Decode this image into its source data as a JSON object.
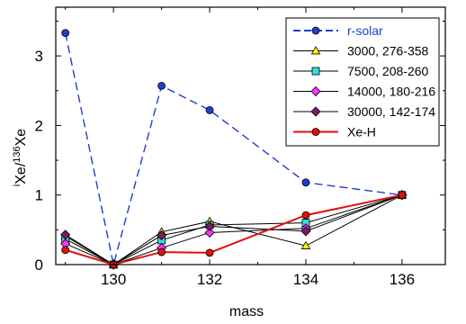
{
  "chart_data": {
    "type": "line",
    "xlabel": "mass",
    "ylabel_parts": {
      "pre_sup": "i",
      "main1": "Xe/",
      "mid_sup": "136",
      "main2": "Xe"
    },
    "xlim": [
      128.8,
      136.9
    ],
    "ylim": [
      0,
      3.7
    ],
    "xticks": [
      130,
      132,
      134,
      136
    ],
    "yticks": [
      0,
      1,
      2,
      3
    ],
    "grid": false,
    "legend_position": "top-right",
    "series": [
      {
        "name": "r-solar",
        "color": "#1f3fd1",
        "linestyle": "dashed",
        "marker": "circle",
        "marker_fill": "#1f3fd1",
        "x": [
          129,
          130,
          131,
          132,
          134,
          136
        ],
        "y": [
          3.33,
          0.0,
          2.57,
          2.22,
          1.18,
          1.0
        ]
      },
      {
        "name": "3000, 276-358",
        "color": "#000000",
        "linestyle": "solid",
        "marker": "triangle",
        "marker_fill": "#ffff00",
        "x": [
          129,
          130,
          131,
          132,
          134,
          136
        ],
        "y": [
          0.41,
          0.0,
          0.47,
          0.62,
          0.27,
          1.0
        ]
      },
      {
        "name": "7500, 208-260",
        "color": "#000000",
        "linestyle": "solid",
        "marker": "square",
        "marker_fill": "#33dddd",
        "x": [
          129,
          130,
          131,
          132,
          134,
          136
        ],
        "y": [
          0.37,
          0.0,
          0.35,
          0.57,
          0.6,
          1.0
        ]
      },
      {
        "name": "14000, 180-216",
        "color": "#000000",
        "linestyle": "solid",
        "marker": "diamond",
        "marker_fill": "#ff33ff",
        "x": [
          129,
          130,
          131,
          132,
          134,
          136
        ],
        "y": [
          0.3,
          0.0,
          0.24,
          0.46,
          0.52,
          1.0
        ]
      },
      {
        "name": "30000, 142-174",
        "color": "#000000",
        "linestyle": "solid",
        "marker": "diamond",
        "marker_fill": "#7a1a6a",
        "x": [
          129,
          130,
          131,
          132,
          134,
          136
        ],
        "y": [
          0.43,
          0.0,
          0.42,
          0.55,
          0.48,
          1.0
        ]
      },
      {
        "name": "Xe-H",
        "color": "#e01010",
        "linestyle": "solid",
        "marker": "circle",
        "marker_fill": "#e01010",
        "x": [
          129,
          130,
          131,
          132,
          134,
          136
        ],
        "y": [
          0.21,
          0.0,
          0.18,
          0.17,
          0.71,
          1.0
        ]
      }
    ]
  }
}
